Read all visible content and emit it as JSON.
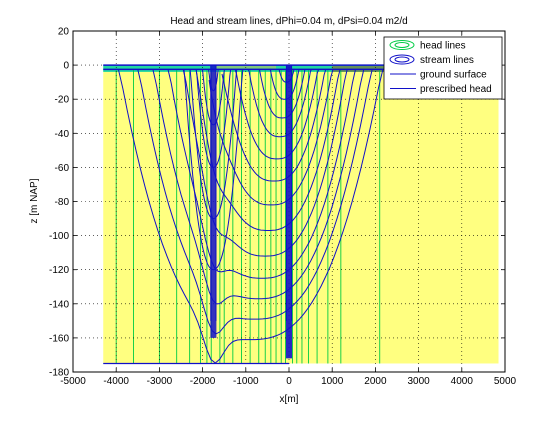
{
  "chart_data": {
    "type": "contour",
    "title": "Head and stream lines, dPhi=0.04 m, dPsi=0.04 m2/d",
    "xlabel": "x[m]",
    "ylabel": "z [m NAP]",
    "xlim": [
      -5000,
      5000
    ],
    "ylim": [
      -180,
      20
    ],
    "xticks": [
      "-5000",
      "-4000",
      "-3000",
      "-2000",
      "-1000",
      "0",
      "1000",
      "2000",
      "3000",
      "4000",
      "5000"
    ],
    "yticks": [
      "20",
      "0",
      "-20",
      "-40",
      "-60",
      "-80",
      "-100",
      "-120",
      "-140",
      "-160",
      "-180"
    ],
    "grid": true,
    "legend_position": "top-right",
    "legend": [
      {
        "label": "head lines",
        "color": "#00cc44"
      },
      {
        "label": "stream lines",
        "color": "#1010c8"
      },
      {
        "label": "ground surface",
        "color": "#1010c8"
      },
      {
        "label": "prescribed head",
        "color": "#1010c8"
      }
    ],
    "colors": {
      "aquifer": "#ffff80",
      "top_layer": "#20d8a0",
      "top_layer_dark": "#7a7a40",
      "head_line": "#00cc44",
      "stream_line": "#1010c8"
    },
    "domain": {
      "x": [
        -4300,
        4850
      ],
      "z": [
        -175,
        -2.5
      ]
    },
    "wells_x": [
      -1750,
      0
    ],
    "head_lines_x": [
      -4000,
      -3600,
      -3000,
      -2600,
      -2300,
      -2050,
      -1900,
      -1800,
      -1600,
      -1500,
      -1300,
      -1100,
      -900,
      -700,
      -550,
      -420,
      -300,
      -180,
      -80,
      80,
      180,
      300,
      450,
      650,
      900,
      1200,
      2100
    ],
    "stream_line_depths": [
      -10,
      -20,
      -31,
      -42,
      -55,
      -68,
      -82,
      -97,
      -112,
      -125,
      -137,
      -149,
      -161
    ],
    "stream_line_half_widths": [
      250,
      450,
      700,
      950,
      1250,
      1550,
      1850,
      2150,
      2450,
      2800,
      3150,
      3500,
      3950
    ]
  }
}
